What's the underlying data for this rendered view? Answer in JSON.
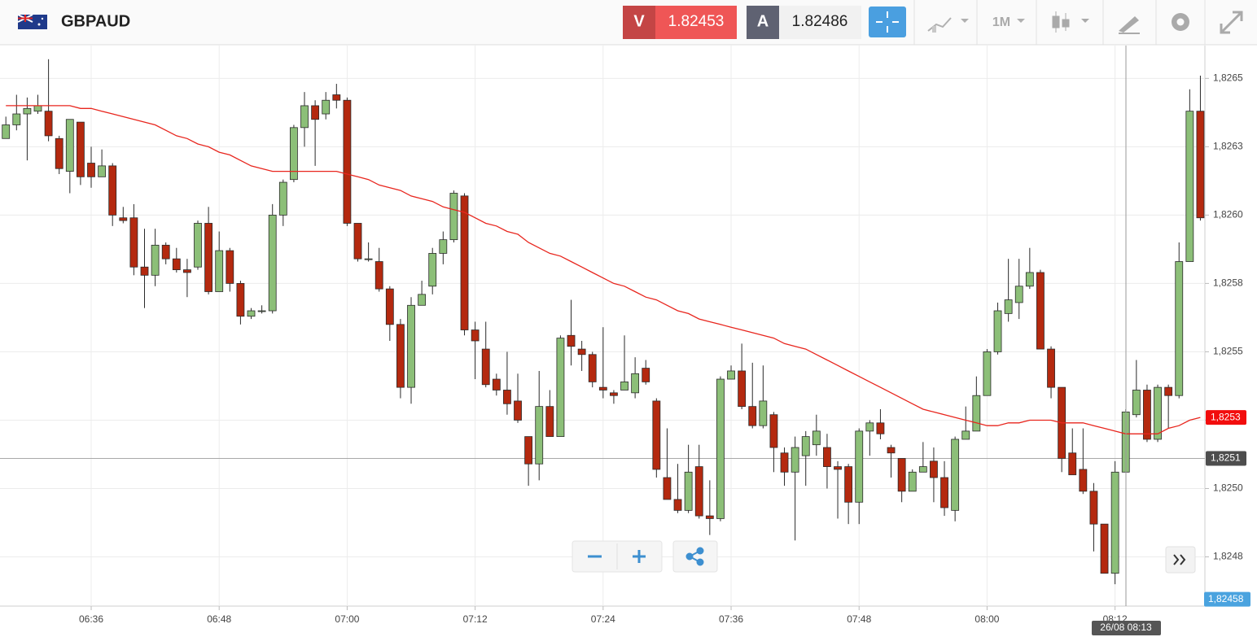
{
  "header": {
    "symbol": "GBPAUD",
    "sell_label": "V",
    "sell_price": "1.82453",
    "buy_label": "A",
    "buy_price": "1.82486",
    "timeframe": "1M"
  },
  "chart_data": {
    "type": "candlestick",
    "categories": [
      null,
      null,
      null,
      null,
      null,
      null,
      null,
      null,
      "06:36",
      null,
      null,
      null,
      null,
      null,
      null,
      null,
      null,
      null,
      null,
      null,
      "06:48",
      null,
      null,
      null,
      null,
      null,
      null,
      null,
      null,
      null,
      null,
      null,
      "07:00",
      null,
      null,
      null,
      null,
      null,
      null,
      null,
      null,
      null,
      null,
      null,
      "07:12",
      null,
      null,
      null,
      null,
      null,
      null,
      null,
      null,
      null,
      null,
      null,
      "07:24",
      null,
      null,
      null,
      null,
      null,
      null,
      null,
      null,
      null,
      null,
      null,
      "07:36",
      null,
      null,
      null,
      null,
      null,
      null,
      null,
      null,
      null,
      null,
      null,
      "07:48",
      null,
      null,
      null,
      null,
      null,
      null,
      null,
      null,
      null,
      null,
      null,
      "08:00",
      null,
      null,
      null,
      null,
      null,
      null,
      null,
      null,
      null,
      null,
      null,
      "08:12",
      null,
      null,
      null,
      null,
      null,
      null,
      null,
      null
    ],
    "open": [
      1.82628,
      1.82633,
      1.82637,
      1.82638,
      1.82638,
      1.82628,
      1.82616,
      1.82634,
      1.82619,
      1.82614,
      1.82618,
      1.82599,
      1.82599,
      1.82581,
      1.82578,
      1.82589,
      1.82584,
      1.8258,
      1.82581,
      1.82597,
      1.82572,
      1.82587,
      1.82575,
      1.82563,
      1.82565,
      1.82565,
      1.826,
      1.82613,
      1.82632,
      1.8264,
      1.82637,
      1.82644,
      1.82642,
      1.82597,
      1.82584,
      1.82583,
      1.82573,
      1.8256,
      1.82537,
      1.82567,
      1.82574,
      1.82586,
      1.82591,
      1.82607,
      1.82558,
      1.82551,
      1.8254,
      1.82536,
      1.82532,
      1.82519,
      1.82509,
      1.8253,
      1.82519,
      1.82556,
      1.82551,
      1.82549,
      1.82537,
      1.82535,
      1.82536,
      1.82535,
      1.82544,
      1.82532,
      1.82504,
      1.82496,
      1.82492,
      1.82508,
      1.8249,
      1.82489,
      1.8254,
      1.82543,
      1.8253,
      1.82523,
      1.82527,
      1.82513,
      1.82506,
      1.82512,
      1.82516,
      1.82515,
      1.82508,
      1.82508,
      1.82495,
      1.82521,
      1.82524,
      1.82515,
      1.82511,
      1.82499,
      1.82506,
      1.8251,
      1.82504,
      1.82492,
      1.82518,
      1.82521,
      1.82534,
      1.8255,
      1.82564,
      1.82568,
      1.82574,
      1.82579,
      1.82551,
      1.82537,
      1.82513,
      1.82507,
      1.82499,
      1.82487,
      1.82469,
      1.82506,
      1.82527,
      1.82536,
      1.82518,
      1.82537,
      1.82534,
      1.82583,
      1.82638
    ],
    "high": [
      1.82636,
      1.82644,
      1.82643,
      1.82644,
      1.82657,
      1.82629,
      1.82635,
      1.82634,
      1.82625,
      1.82624,
      1.82619,
      1.82603,
      1.82604,
      1.82595,
      1.82595,
      1.8259,
      1.82588,
      1.82584,
      1.82598,
      1.82603,
      1.82594,
      1.82588,
      1.82576,
      1.82566,
      1.82567,
      1.82604,
      1.82613,
      1.82633,
      1.82645,
      1.82642,
      1.82645,
      1.82648,
      1.82643,
      1.82597,
      1.8259,
      1.82588,
      1.82574,
      1.82562,
      1.8257,
      1.82576,
      1.82588,
      1.82594,
      1.82609,
      1.82608,
      1.82561,
      1.82561,
      1.82542,
      1.8255,
      1.82542,
      1.82519,
      1.82543,
      1.82536,
      1.82556,
      1.82569,
      1.82554,
      1.8255,
      1.82559,
      1.82536,
      1.82556,
      1.82548,
      1.82547,
      1.82533,
      1.82522,
      1.82509,
      1.82516,
      1.82516,
      1.82503,
      1.82541,
      1.82545,
      1.82553,
      1.82546,
      1.82545,
      1.82528,
      1.82515,
      1.82519,
      1.82521,
      1.82527,
      1.8252,
      1.8251,
      1.82509,
      1.82522,
      1.82525,
      1.82529,
      1.82516,
      1.82511,
      1.82507,
      1.82517,
      1.82515,
      1.8251,
      1.82519,
      1.8253,
      1.82541,
      1.82551,
      1.82568,
      1.82584,
      1.82584,
      1.82588,
      1.8258,
      1.82552,
      1.82537,
      1.82522,
      1.82522,
      1.82502,
      1.82487,
      1.8251,
      1.82529,
      1.82547,
      1.82538,
      1.82538,
      1.82538,
      1.8259,
      1.82646,
      1.82651
    ],
    "low": [
      1.82628,
      1.82631,
      1.8262,
      1.82637,
      1.82627,
      1.82615,
      1.82608,
      1.82611,
      1.8261,
      1.82614,
      1.82596,
      1.82597,
      1.82578,
      1.82566,
      1.82574,
      1.82582,
      1.82579,
      1.8257,
      1.8258,
      1.82571,
      1.82572,
      1.82572,
      1.8256,
      1.82562,
      1.82564,
      1.82564,
      1.82596,
      1.82612,
      1.82625,
      1.82618,
      1.82635,
      1.82639,
      1.82596,
      1.82583,
      1.82583,
      1.82572,
      1.82554,
      1.82533,
      1.82531,
      1.82567,
      1.82571,
      1.82582,
      1.8259,
      1.82556,
      1.8254,
      1.82537,
      1.82534,
      1.82527,
      1.82524,
      1.82501,
      1.82503,
      1.82519,
      1.82519,
      1.82545,
      1.82543,
      1.82537,
      1.82533,
      1.82531,
      1.82536,
      1.82533,
      1.82538,
      1.82504,
      1.82496,
      1.82491,
      1.82491,
      1.82489,
      1.82483,
      1.82488,
      1.8254,
      1.82529,
      1.82522,
      1.82522,
      1.82506,
      1.82501,
      1.82481,
      1.82501,
      1.82512,
      1.825,
      1.82489,
      1.82487,
      1.82487,
      1.82512,
      1.82518,
      1.82504,
      1.82495,
      1.82499,
      1.82506,
      1.82495,
      1.8249,
      1.82488,
      1.82518,
      1.82521,
      1.82534,
      1.82549,
      1.82561,
      1.82562,
      1.82573,
      1.82551,
      1.82533,
      1.82506,
      1.82505,
      1.82498,
      1.82477,
      1.82469,
      1.82465,
      1.82506,
      1.82526,
      1.82517,
      1.82517,
      1.82522,
      1.82533,
      1.82583,
      1.82598
    ],
    "close": [
      1.82633,
      1.82637,
      1.82639,
      1.8264,
      1.82629,
      1.82617,
      1.82635,
      1.82614,
      1.82614,
      1.82618,
      1.826,
      1.82598,
      1.82581,
      1.82578,
      1.82589,
      1.82584,
      1.8258,
      1.82579,
      1.82597,
      1.82572,
      1.82587,
      1.82575,
      1.82563,
      1.82565,
      1.82565,
      1.826,
      1.82612,
      1.82632,
      1.8264,
      1.82635,
      1.82642,
      1.82642,
      1.82597,
      1.82584,
      1.82584,
      1.82573,
      1.8256,
      1.82537,
      1.82567,
      1.82571,
      1.82586,
      1.82591,
      1.82608,
      1.82558,
      1.82554,
      1.82538,
      1.82536,
      1.82531,
      1.82525,
      1.82509,
      1.8253,
      1.82519,
      1.82555,
      1.82552,
      1.82549,
      1.82539,
      1.82536,
      1.82534,
      1.82539,
      1.82542,
      1.82539,
      1.82507,
      1.82496,
      1.82492,
      1.82506,
      1.8249,
      1.82489,
      1.8254,
      1.82543,
      1.8253,
      1.82523,
      1.82532,
      1.82515,
      1.82506,
      1.82515,
      1.82519,
      1.82521,
      1.82508,
      1.82507,
      1.82495,
      1.82521,
      1.82524,
      1.8252,
      1.82513,
      1.82499,
      1.82506,
      1.82508,
      1.82504,
      1.82493,
      1.82518,
      1.82521,
      1.82534,
      1.8255,
      1.82565,
      1.82569,
      1.82574,
      1.82579,
      1.82551,
      1.82537,
      1.82511,
      1.82505,
      1.82499,
      1.82487,
      1.82469,
      1.82506,
      1.82528,
      1.82536,
      1.82518,
      1.82537,
      1.82534,
      1.82583,
      1.82638,
      1.82599
    ],
    "up_color": "#8cbf78",
    "down_color": "#b4290f",
    "ma": {
      "color": "#e8261e",
      "last_label": "1,8253",
      "values": [
        1.8264,
        1.8264,
        1.8264,
        1.8264,
        1.8264,
        1.8264,
        1.8264,
        1.82639,
        1.82639,
        1.82638,
        1.82637,
        1.82636,
        1.82635,
        1.82634,
        1.82633,
        1.82631,
        1.82629,
        1.82628,
        1.82626,
        1.82625,
        1.82623,
        1.82622,
        1.8262,
        1.82618,
        1.82617,
        1.82616,
        1.82616,
        1.82616,
        1.82616,
        1.82616,
        1.82616,
        1.82616,
        1.82615,
        1.82614,
        1.82613,
        1.82611,
        1.8261,
        1.82609,
        1.82607,
        1.82606,
        1.82605,
        1.82603,
        1.82602,
        1.82601,
        1.82599,
        1.82597,
        1.82596,
        1.82594,
        1.82593,
        1.8259,
        1.82588,
        1.82586,
        1.82585,
        1.82583,
        1.82581,
        1.82579,
        1.82577,
        1.82575,
        1.82574,
        1.82572,
        1.8257,
        1.82569,
        1.82567,
        1.82565,
        1.82564,
        1.82562,
        1.82561,
        1.8256,
        1.82559,
        1.82558,
        1.82557,
        1.82556,
        1.82555,
        1.82553,
        1.82552,
        1.82551,
        1.82549,
        1.82547,
        1.82545,
        1.82543,
        1.82541,
        1.82539,
        1.82537,
        1.82535,
        1.82533,
        1.82531,
        1.82529,
        1.82528,
        1.82527,
        1.82526,
        1.82525,
        1.82524,
        1.82523,
        1.82523,
        1.82524,
        1.82524,
        1.82525,
        1.82525,
        1.82525,
        1.82524,
        1.82524,
        1.82524,
        1.82523,
        1.82522,
        1.82521,
        1.8252,
        1.8252,
        1.8252,
        1.8252,
        1.82522,
        1.82523,
        1.82525,
        1.82526
      ]
    },
    "price_line": {
      "value": 1.82511,
      "label": "1,8251"
    },
    "cursor_price": {
      "value": 1.82458,
      "label": "1,82458"
    },
    "crosshair": {
      "label": "26/08 08:13"
    },
    "ylim": [
      1.82457,
      1.82662
    ],
    "yticks": [
      {
        "value": 1.8265,
        "label": "1,8265"
      },
      {
        "value": 1.82625,
        "label": "1,8263"
      },
      {
        "value": 1.826,
        "label": "1,8260"
      },
      {
        "value": 1.82575,
        "label": "1,8258"
      },
      {
        "value": 1.8255,
        "label": "1,8255"
      },
      {
        "value": 1.82525,
        "label": "1,8253"
      },
      {
        "value": 1.825,
        "label": "1,8250"
      },
      {
        "value": 1.82475,
        "label": "1,8248"
      }
    ],
    "grid": true
  }
}
